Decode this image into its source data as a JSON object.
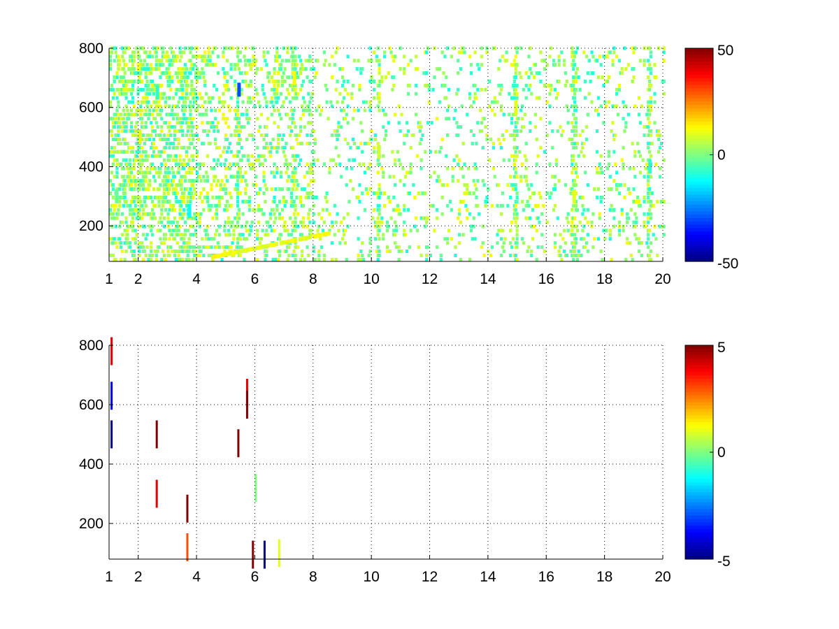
{
  "chart_data": [
    {
      "type": "heatmap",
      "title": "",
      "xlabel": "",
      "ylabel": "",
      "x_ticks": [
        1,
        2,
        4,
        6,
        8,
        10,
        12,
        14,
        16,
        18,
        20
      ],
      "y_ticks": [
        200,
        400,
        600,
        800
      ],
      "xlim": [
        1,
        20
      ],
      "ylim": [
        80,
        800
      ],
      "grid": true,
      "colormap": "jet",
      "clim": [
        -50,
        50
      ],
      "colorbar_ticks": [
        50,
        0,
        -50
      ],
      "nan_color": "#ffffff",
      "description_values": "scattered cells; values mostly within about -15 to +15; dense below x=5, sparser to the right, with vertical stripes of constant x",
      "cells": [
        {
          "x": 1.2,
          "y": 300,
          "v": -2
        },
        {
          "x": 2.0,
          "y": 500,
          "v": 10
        },
        {
          "x": 2.6,
          "y": 650,
          "v": -8
        },
        {
          "x": 3.7,
          "y": 250,
          "v": -12
        },
        {
          "x": 5.4,
          "y": 660,
          "v": -30
        },
        {
          "x": 7.3,
          "y": 700,
          "v": 12
        },
        {
          "x": 10.2,
          "y": 450,
          "v": 8
        },
        {
          "x": 14.9,
          "y": 600,
          "v": 10
        },
        {
          "x": 16.9,
          "y": 300,
          "v": 10
        },
        {
          "x": 19.5,
          "y": 400,
          "v": -8
        }
      ]
    },
    {
      "type": "heatmap",
      "title": "",
      "xlabel": "",
      "ylabel": "",
      "x_ticks": [
        1,
        2,
        4,
        6,
        8,
        10,
        12,
        14,
        16,
        18,
        20
      ],
      "y_ticks": [
        200,
        400,
        600,
        800
      ],
      "xlim": [
        1,
        20
      ],
      "ylim": [
        80,
        800
      ],
      "grid": true,
      "colormap": "jet",
      "clim": [
        -5,
        5
      ],
      "colorbar_ticks": [
        5,
        0,
        -5
      ],
      "nan_color": "#ffffff",
      "cells": [
        {
          "x": 1.05,
          "y": 780,
          "v": 4
        },
        {
          "x": 1.05,
          "y": 630,
          "v": -4
        },
        {
          "x": 1.05,
          "y": 500,
          "v": -5
        },
        {
          "x": 2.6,
          "y": 500,
          "v": 5
        },
        {
          "x": 2.6,
          "y": 300,
          "v": 4
        },
        {
          "x": 3.65,
          "y": 250,
          "v": 5
        },
        {
          "x": 3.65,
          "y": 120,
          "v": 3
        },
        {
          "x": 5.4,
          "y": 470,
          "v": 5
        },
        {
          "x": 5.7,
          "y": 640,
          "v": 4
        },
        {
          "x": 5.7,
          "y": 600,
          "v": 5
        },
        {
          "x": 6.0,
          "y": 320,
          "v": 0
        },
        {
          "x": 5.9,
          "y": 95,
          "v": 5
        },
        {
          "x": 6.3,
          "y": 95,
          "v": -5
        },
        {
          "x": 6.8,
          "y": 100,
          "v": 1
        }
      ]
    }
  ]
}
